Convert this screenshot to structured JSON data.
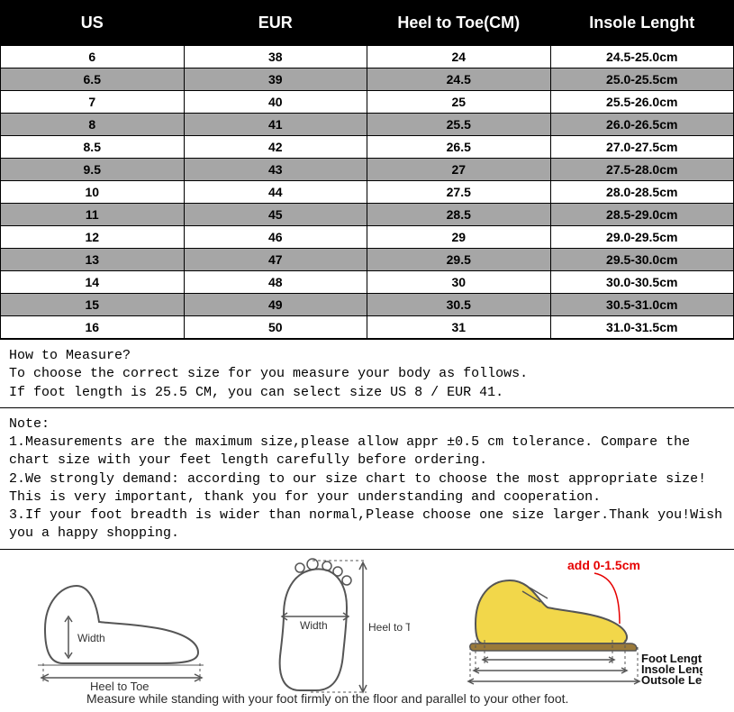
{
  "table": {
    "columns": [
      "US",
      "EUR",
      "Heel to Toe(CM)",
      "Insole Lenght"
    ],
    "header_bg": "#000000",
    "header_fg": "#ffffff",
    "row_alt_bg": "#a6a6a6",
    "row_bg": "#ffffff",
    "border_color": "#000000",
    "header_fontsize": 18,
    "cell_fontsize": 14,
    "rows": [
      [
        "6",
        "38",
        "24",
        "24.5-25.0cm"
      ],
      [
        "6.5",
        "39",
        "24.5",
        "25.0-25.5cm"
      ],
      [
        "7",
        "40",
        "25",
        "25.5-26.0cm"
      ],
      [
        "8",
        "41",
        "25.5",
        "26.0-26.5cm"
      ],
      [
        "8.5",
        "42",
        "26.5",
        "27.0-27.5cm"
      ],
      [
        "9.5",
        "43",
        "27",
        "27.5-28.0cm"
      ],
      [
        "10",
        "44",
        "27.5",
        "28.0-28.5cm"
      ],
      [
        "11",
        "45",
        "28.5",
        "28.5-29.0cm"
      ],
      [
        "12",
        "46",
        "29",
        "29.0-29.5cm"
      ],
      [
        "13",
        "47",
        "29.5",
        "29.5-30.0cm"
      ],
      [
        "14",
        "48",
        "30",
        "30.0-30.5cm"
      ],
      [
        "15",
        "49",
        "30.5",
        "30.5-31.0cm"
      ],
      [
        "16",
        "50",
        "31",
        "31.0-31.5cm"
      ]
    ]
  },
  "howto": {
    "title": "How to Measure?",
    "line1": "To choose the correct size for you measure your body as follows.",
    "line2": "If foot length is 25.5 CM, you can select size US 8 / EUR 41."
  },
  "note": {
    "title": "Note:",
    "n1": "1.Measurements are the maximum size,please allow appr ±0.5 cm tolerance. Compare the chart size with your feet length carefully before ordering.",
    "n2": "2.We strongly demand: according to our size chart to choose the most appropriate size! This is very important, thank you for your understanding and cooperation.",
    "n3": "3.If your foot breadth is wider than normal,Please choose one size larger.Thank you!Wish you a happy shopping."
  },
  "diagrams": {
    "d1": {
      "width_label": "Width",
      "heel_to_toe_label": "Heel to Toe"
    },
    "d2": {
      "width_label": "Width",
      "heel_to_toe_label": "Heel to Toe"
    },
    "d3": {
      "add_label": "add 0-1.5cm",
      "foot_label": "Foot Length",
      "insole_label": "Insole Length",
      "outsole_label": "Outsole Length",
      "shoe_fill": "#f2d74a",
      "sole_fill": "#9a7a3a"
    },
    "caption": "Measure while standing with your foot firmly on the floor and parallel to your other foot."
  },
  "colors": {
    "mono_font": "Courier New",
    "red": "#e60000"
  }
}
